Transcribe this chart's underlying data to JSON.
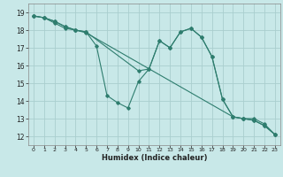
{
  "title": "",
  "xlabel": "Humidex (Indice chaleur)",
  "xlim": [
    -0.5,
    23.5
  ],
  "ylim": [
    11.5,
    19.5
  ],
  "yticks": [
    12,
    13,
    14,
    15,
    16,
    17,
    18,
    19
  ],
  "xticks": [
    0,
    1,
    2,
    3,
    4,
    5,
    6,
    7,
    8,
    9,
    10,
    11,
    12,
    13,
    14,
    15,
    16,
    17,
    18,
    19,
    20,
    21,
    22,
    23
  ],
  "line_color": "#2e7d6e",
  "bg_color": "#c8e8e8",
  "grid_color": "#aacece",
  "line1": {
    "x": [
      0,
      1,
      2,
      3,
      4,
      5,
      6,
      7,
      8,
      9,
      10,
      11,
      12,
      13,
      14,
      15,
      16,
      17,
      18,
      19,
      20,
      21,
      22,
      23
    ],
    "y": [
      18.8,
      18.7,
      18.5,
      18.2,
      18.0,
      17.9,
      17.1,
      14.3,
      13.9,
      13.6,
      15.1,
      15.8,
      17.4,
      17.0,
      17.9,
      18.1,
      17.6,
      16.5,
      14.1,
      13.1,
      13.0,
      12.9,
      12.6,
      12.1
    ]
  },
  "line2": {
    "x": [
      0,
      1,
      2,
      3,
      4,
      5,
      10,
      11,
      12,
      13,
      14,
      15,
      16,
      17,
      18,
      19,
      20,
      21,
      22,
      23
    ],
    "y": [
      18.8,
      18.7,
      18.5,
      18.2,
      18.0,
      17.9,
      15.7,
      15.8,
      17.4,
      17.0,
      17.9,
      18.1,
      17.6,
      16.5,
      14.1,
      13.1,
      13.0,
      12.9,
      12.6,
      12.1
    ]
  },
  "line3": {
    "x": [
      0,
      1,
      2,
      3,
      4,
      5,
      19,
      20,
      21,
      22,
      23
    ],
    "y": [
      18.8,
      18.7,
      18.4,
      18.1,
      18.0,
      17.85,
      13.1,
      13.0,
      13.0,
      12.7,
      12.1
    ]
  }
}
